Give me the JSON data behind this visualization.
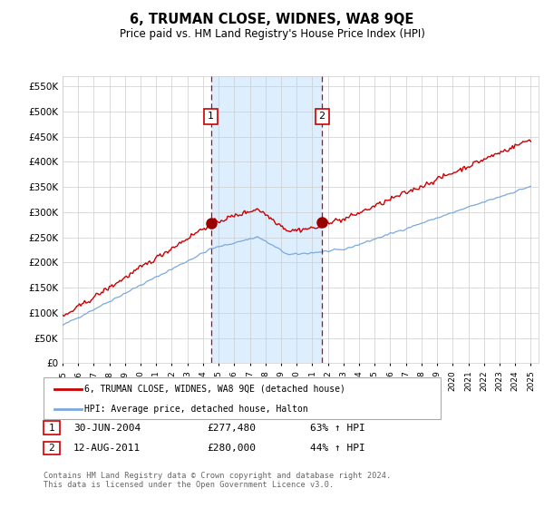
{
  "title": "6, TRUMAN CLOSE, WIDNES, WA8 9QE",
  "subtitle": "Price paid vs. HM Land Registry's House Price Index (HPI)",
  "ylabel_ticks": [
    "£0",
    "£50K",
    "£100K",
    "£150K",
    "£200K",
    "£250K",
    "£300K",
    "£350K",
    "£400K",
    "£450K",
    "£500K",
    "£550K"
  ],
  "ytick_values": [
    0,
    50000,
    100000,
    150000,
    200000,
    250000,
    300000,
    350000,
    400000,
    450000,
    500000,
    550000
  ],
  "ylim": [
    0,
    570000
  ],
  "xlim_start": 1995.0,
  "xlim_end": 2025.5,
  "sale1_date": 2004.5,
  "sale1_price": 277480,
  "sale1_label": "1",
  "sale2_date": 2011.62,
  "sale2_price": 280000,
  "sale2_label": "2",
  "hpi_line_color": "#7aaadd",
  "price_line_color": "#cc0000",
  "sale_marker_color": "#990000",
  "shade_color": "#ddeeff",
  "dashed_line_color": "#cc0000",
  "legend_label_price": "6, TRUMAN CLOSE, WIDNES, WA8 9QE (detached house)",
  "legend_label_hpi": "HPI: Average price, detached house, Halton",
  "note1_label": "1",
  "note1_date": "30-JUN-2004",
  "note1_price": "£277,480",
  "note1_hpi": "63% ↑ HPI",
  "note2_label": "2",
  "note2_date": "12-AUG-2011",
  "note2_price": "£280,000",
  "note2_hpi": "44% ↑ HPI",
  "footer": "Contains HM Land Registry data © Crown copyright and database right 2024.\nThis data is licensed under the Open Government Licence v3.0.",
  "background_color": "#ffffff",
  "plot_bg_color": "#ffffff",
  "grid_color": "#cccccc"
}
